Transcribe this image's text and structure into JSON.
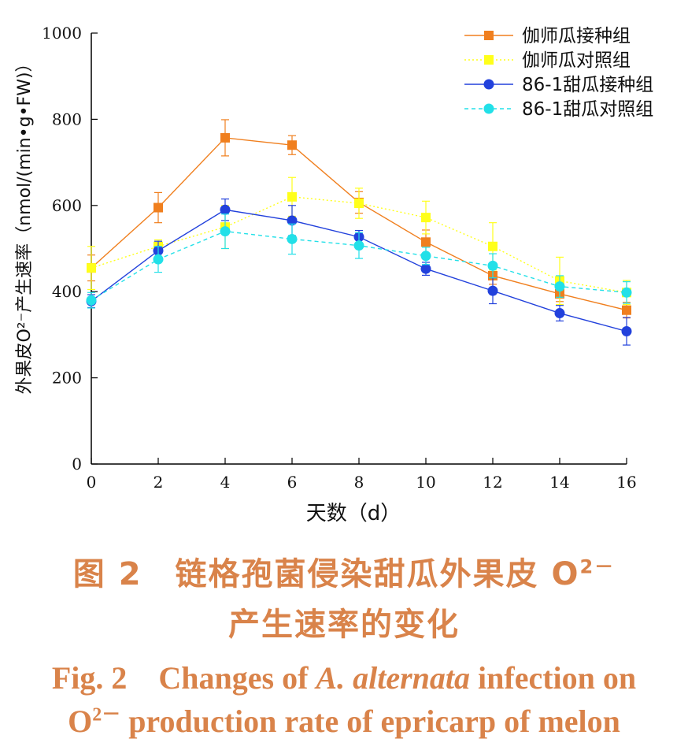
{
  "chart_data": {
    "type": "line",
    "title": "",
    "xlabel": "天数（d）",
    "ylabel": "外果皮O²⁻产生速率（nmol/(min•g•FW)）",
    "x": [
      0,
      2,
      4,
      6,
      8,
      10,
      12,
      14,
      16
    ],
    "xticks": [
      "0",
      "2",
      "4",
      "6",
      "8",
      "10",
      "12",
      "14",
      "16"
    ],
    "yticks": [
      "0",
      "200",
      "400",
      "600",
      "800",
      "1000"
    ],
    "xlim": [
      0,
      16
    ],
    "ylim": [
      0,
      1000
    ],
    "grid": false,
    "legend_position": "top-right",
    "series": [
      {
        "name": "伽师瓜接种组",
        "color": "#f07f1e",
        "marker": "square",
        "line_style": "solid",
        "values": [
          455,
          595,
          757,
          740,
          607,
          515,
          437,
          395,
          357
        ],
        "errors": [
          30,
          35,
          42,
          22,
          25,
          28,
          20,
          18,
          18
        ]
      },
      {
        "name": "伽师瓜对照组",
        "color": "#ffff1a",
        "marker": "square",
        "line_style": "dotted",
        "values": [
          455,
          505,
          550,
          620,
          605,
          572,
          505,
          425,
          398
        ],
        "errors": [
          50,
          15,
          50,
          45,
          35,
          38,
          55,
          55,
          28
        ]
      },
      {
        "name": "86-1甜瓜接种组",
        "color": "#2241dc",
        "marker": "circle",
        "line_style": "solid",
        "values": [
          378,
          495,
          590,
          565,
          527,
          453,
          402,
          350,
          308
        ],
        "errors": [
          15,
          22,
          25,
          35,
          15,
          15,
          30,
          18,
          32
        ]
      },
      {
        "name": "86-1甜瓜对照组",
        "color": "#22e0e8",
        "marker": "circle",
        "line_style": "dashed",
        "values": [
          380,
          475,
          540,
          522,
          507,
          483,
          460,
          412,
          398
        ],
        "errors": [
          18,
          30,
          40,
          35,
          30,
          20,
          28,
          25,
          25
        ]
      }
    ]
  },
  "caption": {
    "cn_line1_prefix": "图 2　链格孢菌侵染甜瓜外果皮 O",
    "cn_line1_sup": "2－",
    "cn_line2": "产生速率的变化",
    "en_line1_a": "Fig. 2　Changes of ",
    "en_line1_italic": "A. alternata",
    "en_line1_b": " infection on",
    "en_line2_prefix": "O",
    "en_line2_sup": "2－",
    "en_line2_rest": " production rate of epricarp of melon"
  }
}
